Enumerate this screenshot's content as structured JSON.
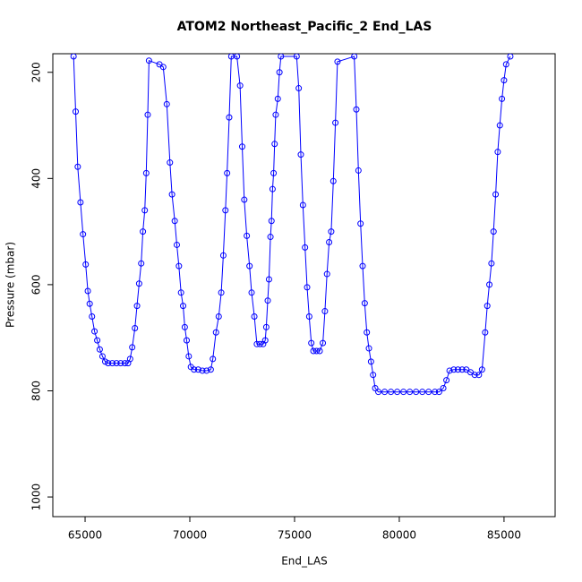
{
  "chart_data": {
    "type": "line",
    "title": "ATOM2 Northeast_Pacific_2 End_LAS",
    "x_label": "End_LAS",
    "y_label": "Pressure (mbar)",
    "color": "#0000ff",
    "marker": "circle",
    "x": [
      64450,
      64550,
      64650,
      64780,
      64900,
      65030,
      65130,
      65220,
      65330,
      65450,
      65580,
      65700,
      65830,
      65960,
      66100,
      66300,
      66500,
      66700,
      66900,
      67050,
      67150,
      67250,
      67380,
      67480,
      67580,
      67680,
      67760,
      67850,
      67920,
      67990,
      68050,
      68550,
      68730,
      68900,
      69050,
      69150,
      69280,
      69380,
      69480,
      69580,
      69680,
      69760,
      69850,
      69950,
      70050,
      70200,
      70400,
      70600,
      70800,
      71000,
      71100,
      71250,
      71380,
      71500,
      71600,
      71700,
      71780,
      71880,
      71980,
      72250,
      72400,
      72500,
      72600,
      72720,
      72850,
      72950,
      73080,
      73200,
      73350,
      73500,
      73600,
      73650,
      73720,
      73780,
      73850,
      73900,
      73950,
      74000,
      74050,
      74100,
      74200,
      74280,
      74350,
      75100,
      75200,
      75300,
      75400,
      75500,
      75600,
      75700,
      75800,
      75900,
      76050,
      76200,
      76350,
      76450,
      76550,
      76650,
      76750,
      76850,
      76950,
      77050,
      77850,
      77950,
      78050,
      78150,
      78250,
      78350,
      78450,
      78550,
      78650,
      78750,
      78850,
      79000,
      79300,
      79600,
      79900,
      80200,
      80500,
      80800,
      81100,
      81400,
      81700,
      81900,
      82100,
      82250,
      82400,
      82600,
      82800,
      83000,
      83200,
      83400,
      83600,
      83800,
      83950,
      84100,
      84200,
      84300,
      84400,
      84500,
      84600,
      84700,
      84800,
      84900,
      85000,
      85100,
      85300
    ],
    "values": [
      170,
      274,
      378,
      445,
      505,
      562,
      612,
      636,
      660,
      688,
      705,
      722,
      735,
      745,
      748,
      748,
      748,
      748,
      748,
      748,
      740,
      718,
      682,
      640,
      598,
      560,
      500,
      460,
      390,
      280,
      178,
      185,
      190,
      260,
      370,
      430,
      480,
      525,
      565,
      615,
      640,
      680,
      705,
      735,
      755,
      760,
      760,
      762,
      762,
      760,
      740,
      690,
      660,
      615,
      545,
      460,
      390,
      285,
      170,
      170,
      225,
      340,
      440,
      508,
      565,
      615,
      660,
      712,
      712,
      712,
      705,
      680,
      630,
      590,
      510,
      480,
      420,
      390,
      335,
      280,
      250,
      200,
      170,
      170,
      230,
      355,
      450,
      530,
      605,
      660,
      710,
      725,
      725,
      725,
      710,
      650,
      580,
      520,
      500,
      405,
      295,
      180,
      170,
      270,
      385,
      485,
      565,
      635,
      690,
      720,
      745,
      770,
      795,
      802,
      802,
      802,
      802,
      802,
      802,
      802,
      802,
      802,
      802,
      802,
      795,
      780,
      762,
      760,
      760,
      760,
      760,
      765,
      770,
      770,
      760,
      690,
      640,
      600,
      560,
      500,
      430,
      350,
      300,
      250,
      215,
      185,
      170
    ],
    "xlim": [
      63460,
      87440
    ],
    "ylim": [
      1037,
      165
    ],
    "xticks": [
      65000,
      70000,
      75000,
      80000,
      85000
    ],
    "yticks": [
      200,
      400,
      600,
      800,
      1000
    ]
  }
}
